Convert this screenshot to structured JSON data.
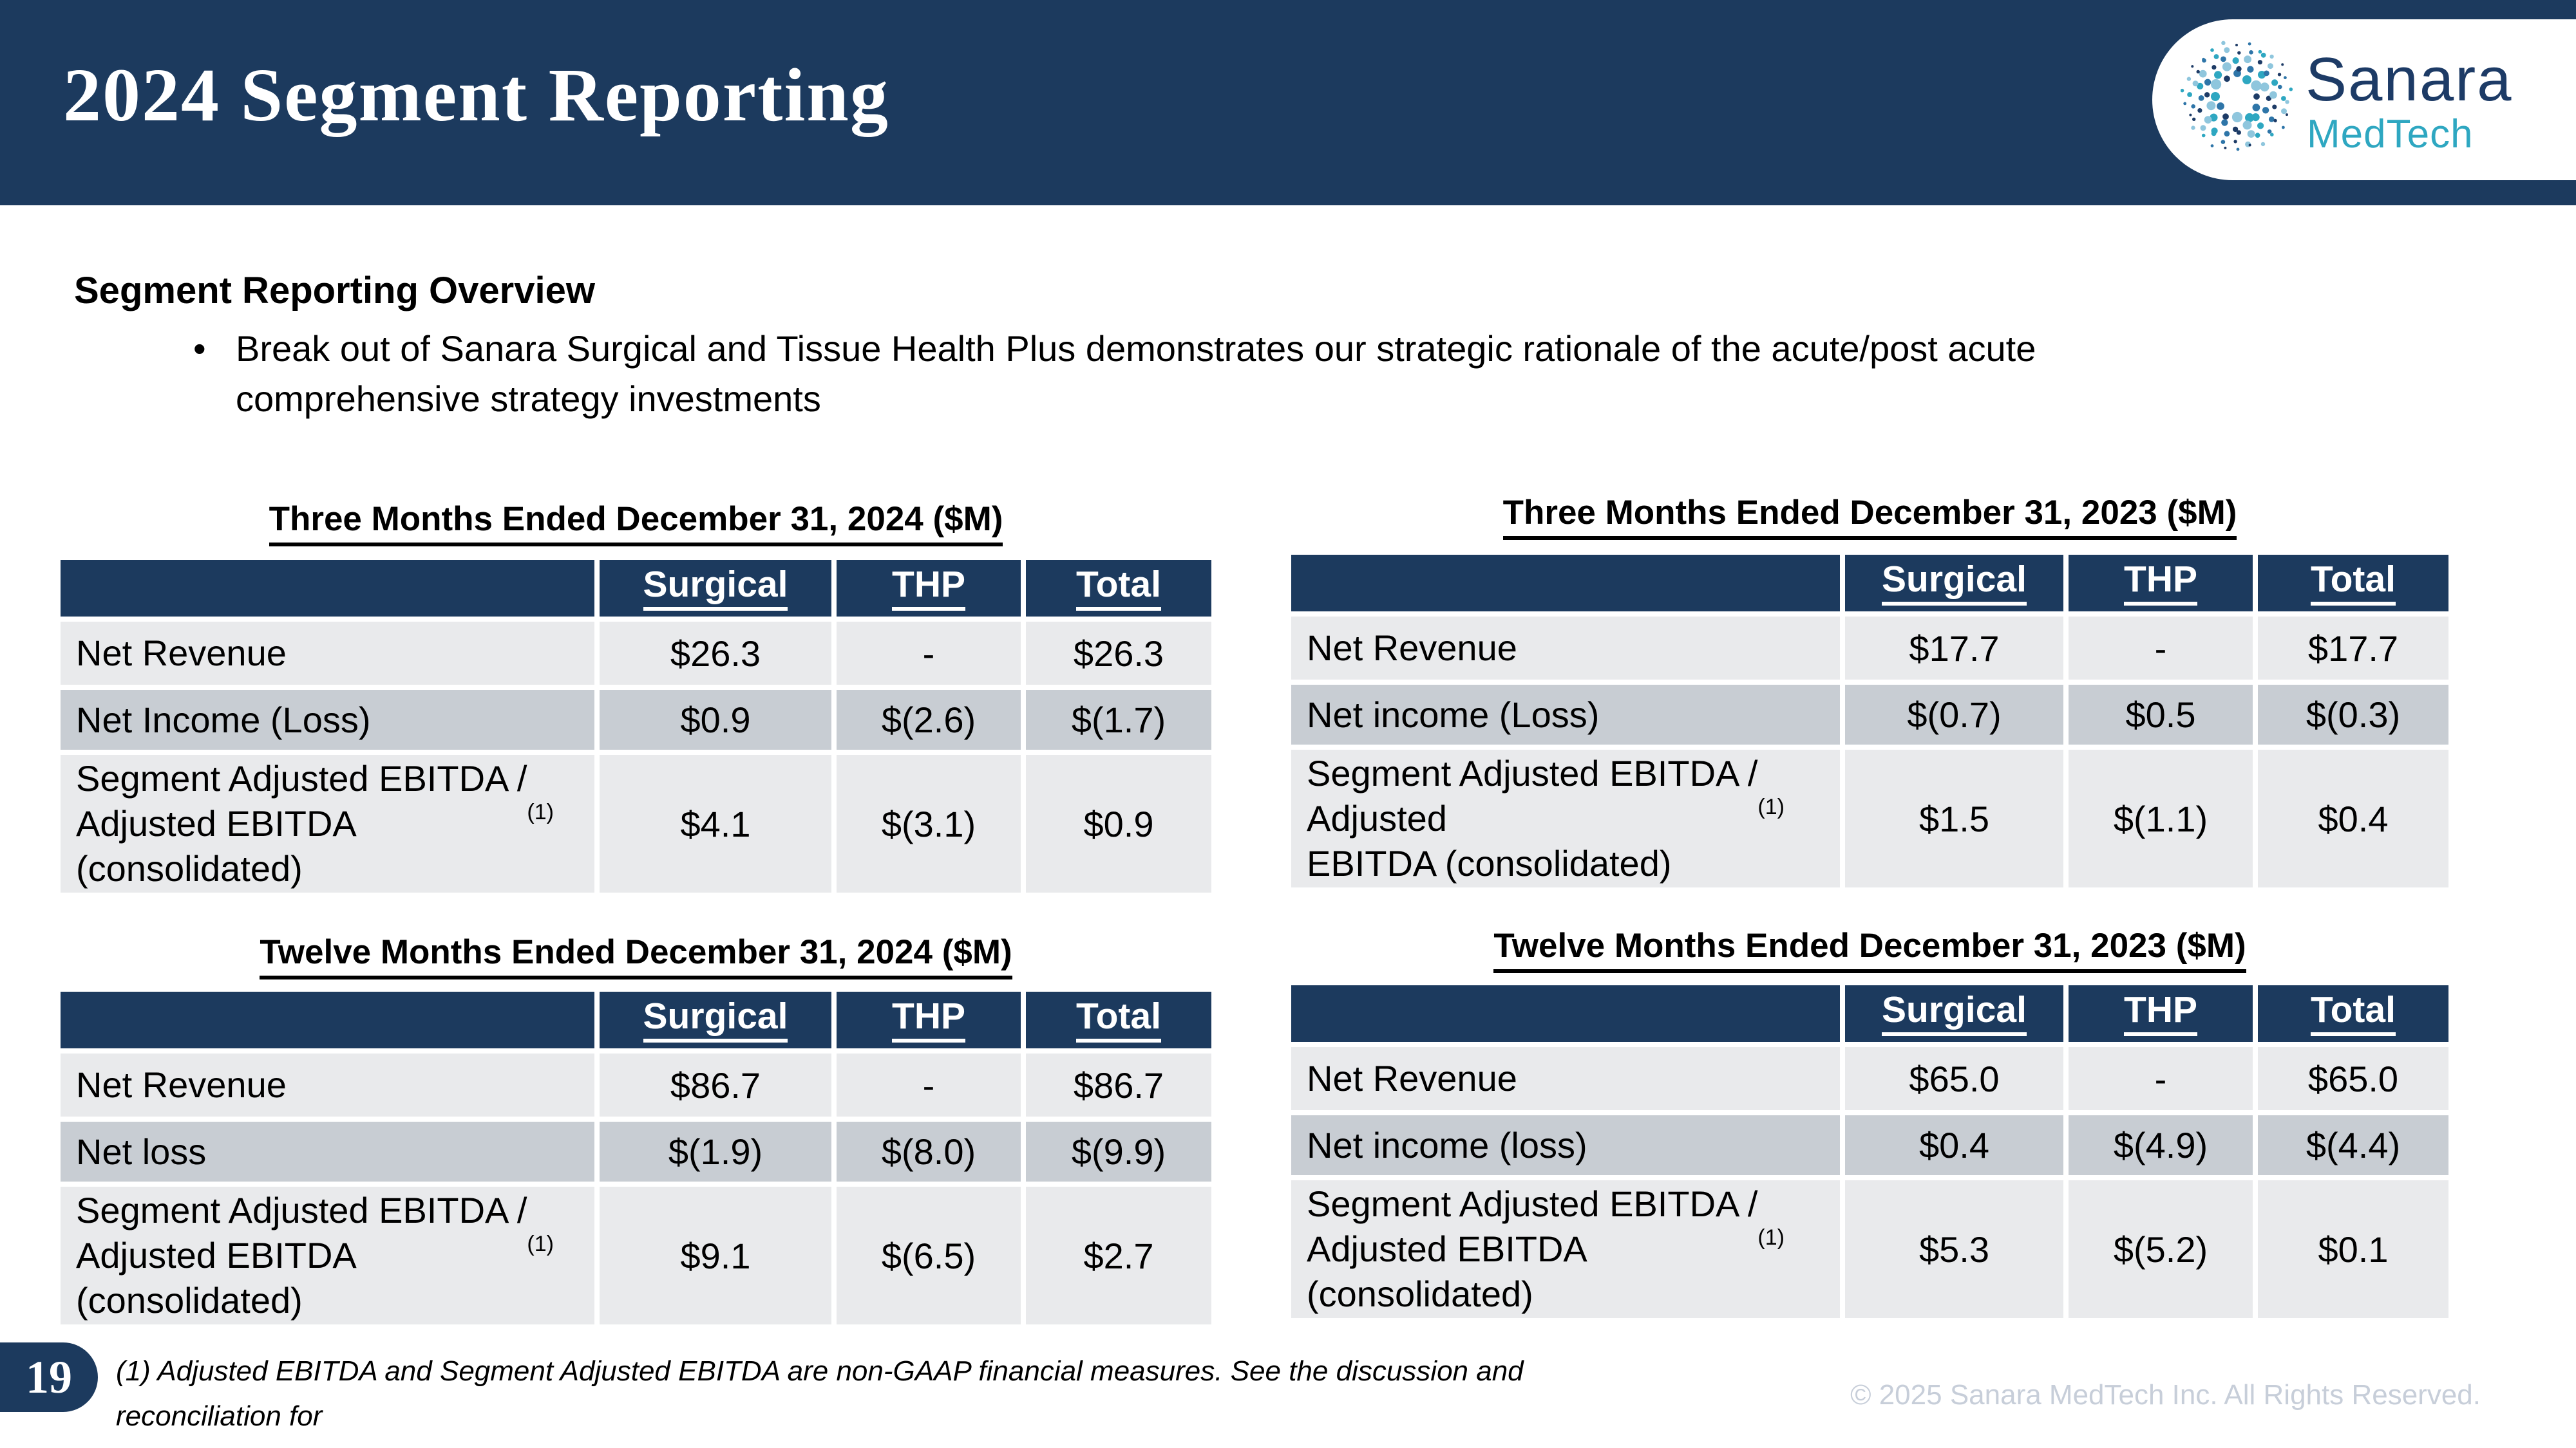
{
  "slide": {
    "title": "2024 Segment Reporting",
    "page_number": "19",
    "footnote": "(1)   Adjusted EBITDA and Segment Adjusted EBITDA are non-GAAP financial measures. See the discussion and reconciliation for\nadditional information.",
    "copyright": "© 2025 Sanara MedTech Inc. All Rights Reserved."
  },
  "logo": {
    "name": "Sanara",
    "sub": "MedTech"
  },
  "overview": {
    "heading": "Segment Reporting Overview",
    "bullet_marker": "•",
    "bullet": "Break out of Sanara Surgical and Tissue Health Plus demonstrates our strategic rationale of the acute/post acute\ncomprehensive strategy investments"
  },
  "colors": {
    "navy": "#1c3a5e",
    "teal": "#2ea7c1",
    "row_light": "#e9eaec",
    "row_dark": "#c8cdd3"
  },
  "tables": [
    {
      "title": "Three Months Ended December 31, 2024 ($M)",
      "columns": [
        "Surgical",
        "THP",
        "Total"
      ],
      "rows": [
        {
          "label": "Net Revenue",
          "sup": "",
          "values": [
            "$26.3",
            "-",
            "$26.3"
          ]
        },
        {
          "label": "Net Income (Loss)",
          "sup": "",
          "values": [
            "$0.9",
            "$(2.6)",
            "$(1.7)"
          ]
        },
        {
          "label": "Segment Adjusted EBITDA /\nAdjusted EBITDA\n(consolidated)",
          "sup": "(1)",
          "values": [
            "$4.1",
            "$(3.1)",
            "$0.9"
          ]
        }
      ]
    },
    {
      "title": "Three Months Ended December 31, 2023 ($M)",
      "columns": [
        "Surgical",
        "THP",
        "Total"
      ],
      "rows": [
        {
          "label": "Net Revenue",
          "sup": "",
          "values": [
            "$17.7",
            "-",
            "$17.7"
          ]
        },
        {
          "label": "Net income (Loss)",
          "sup": "",
          "values": [
            "$(0.7)",
            "$0.5",
            "$(0.3)"
          ]
        },
        {
          "label": "Segment Adjusted EBITDA /\nAdjusted\nEBITDA (consolidated)",
          "sup": "(1)",
          "values": [
            "$1.5",
            "$(1.1)",
            "$0.4"
          ]
        }
      ]
    },
    {
      "title": "Twelve Months Ended December 31, 2024 ($M)",
      "columns": [
        "Surgical",
        "THP",
        "Total"
      ],
      "rows": [
        {
          "label": "Net Revenue",
          "sup": "",
          "values": [
            "$86.7",
            "-",
            "$86.7"
          ]
        },
        {
          "label": "Net loss",
          "sup": "",
          "values": [
            "$(1.9)",
            "$(8.0)",
            "$(9.9)"
          ]
        },
        {
          "label": "Segment Adjusted EBITDA /\nAdjusted EBITDA\n(consolidated)",
          "sup": "(1)",
          "values": [
            "$9.1",
            "$(6.5)",
            "$2.7"
          ]
        }
      ]
    },
    {
      "title": "Twelve Months Ended December 31, 2023 ($M)",
      "columns": [
        "Surgical",
        "THP",
        "Total"
      ],
      "rows": [
        {
          "label": "Net Revenue",
          "sup": "",
          "values": [
            "$65.0",
            "-",
            "$65.0"
          ]
        },
        {
          "label": "Net income (loss)",
          "sup": "",
          "values": [
            "$0.4",
            "$(4.9)",
            "$(4.4)"
          ]
        },
        {
          "label": "Segment Adjusted EBITDA /\nAdjusted EBITDA\n(consolidated)",
          "sup": "(1)",
          "values": [
            "$5.3",
            "$(5.2)",
            "$0.1"
          ]
        }
      ]
    }
  ]
}
